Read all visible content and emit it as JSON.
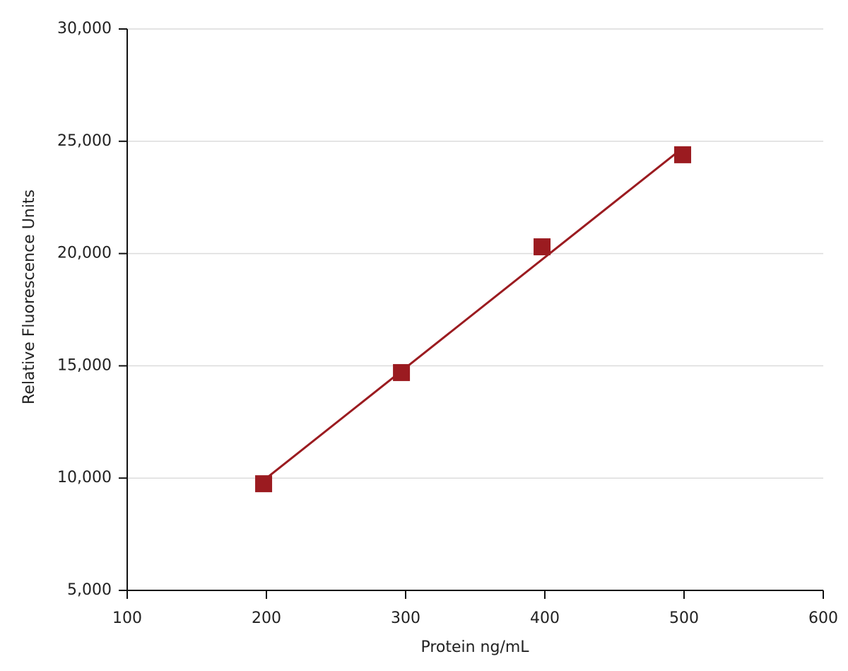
{
  "chart_data": {
    "type": "scatter",
    "x_label": "Protein ng/mL",
    "y_label": "Relative Fluorescence Units",
    "series": [
      {
        "color": "#9b1b20",
        "marker": "square",
        "x": [
          198,
          297,
          398,
          499
        ],
        "values": [
          9750,
          14700,
          20300,
          24400
        ]
      },
      {
        "color": "#9b1b20",
        "line": true,
        "x": [
          198,
          499
        ],
        "values": [
          9900,
          24700
        ]
      }
    ],
    "xlim": [
      100,
      600
    ],
    "xticks": [
      100,
      200,
      300,
      400,
      500,
      600
    ],
    "ylim": [
      5000,
      30000
    ],
    "yticks": [
      {
        "value": 5000,
        "label": "5,000"
      },
      {
        "value": 10000,
        "label": "10,000"
      },
      {
        "value": 15000,
        "label": "15,000"
      },
      {
        "value": 20000,
        "label": "20,000"
      },
      {
        "value": 25000,
        "label": "25,000"
      },
      {
        "value": 30000,
        "label": "30,000"
      }
    ],
    "grid": true
  }
}
